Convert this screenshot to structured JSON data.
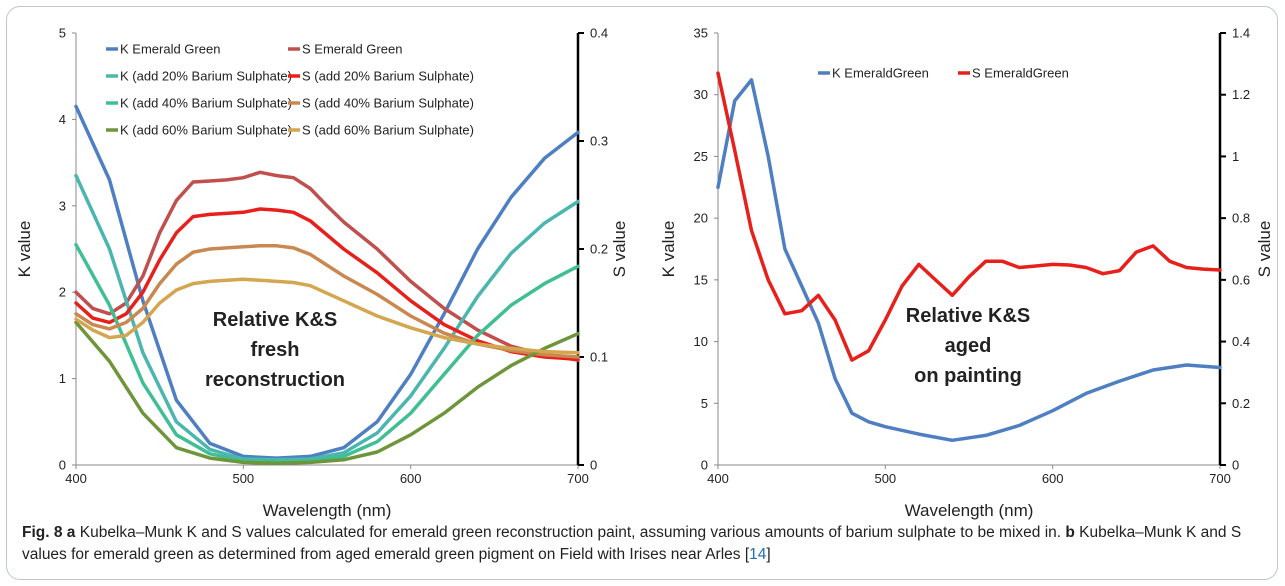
{
  "chart_data": [
    {
      "type": "line",
      "panel": "a",
      "xlabel": "Wavelength (nm)",
      "ylabel": "K value",
      "y2label": "S value",
      "xlim": [
        400,
        700
      ],
      "ylim": [
        0,
        5
      ],
      "y2lim": [
        0,
        0.4
      ],
      "xticks": [
        "400",
        "500",
        "600",
        "700"
      ],
      "yticks": [
        "0",
        "1",
        "2",
        "3",
        "4",
        "5"
      ],
      "y2ticks": [
        "0",
        "0.1",
        "0.2",
        "0.3",
        "0.4"
      ],
      "annotation": [
        "Relative K&S",
        "fresh",
        "reconstruction"
      ],
      "legend_position": "top",
      "series": [
        {
          "name": "K Emerald Green",
          "axis": "left",
          "color": "#4f7fc3",
          "x": [
            400,
            420,
            440,
            460,
            480,
            500,
            520,
            540,
            560,
            580,
            600,
            620,
            640,
            660,
            680,
            700
          ],
          "y": [
            4.15,
            3.3,
            1.9,
            0.75,
            0.25,
            0.1,
            0.08,
            0.1,
            0.2,
            0.5,
            1.05,
            1.75,
            2.5,
            3.1,
            3.55,
            3.85
          ]
        },
        {
          "name": "S Emerald Green",
          "axis": "right",
          "color": "#c0504d",
          "x": [
            400,
            410,
            420,
            430,
            440,
            450,
            460,
            470,
            480,
            490,
            500,
            510,
            520,
            530,
            540,
            550,
            560,
            580,
            600,
            620,
            640,
            660,
            680,
            700
          ],
          "y": [
            0.16,
            0.145,
            0.14,
            0.15,
            0.175,
            0.215,
            0.245,
            0.262,
            0.263,
            0.264,
            0.266,
            0.271,
            0.268,
            0.266,
            0.256,
            0.24,
            0.225,
            0.2,
            0.17,
            0.145,
            0.125,
            0.11,
            0.102,
            0.097
          ]
        },
        {
          "name": "K (add 20% Barium Sulphate)",
          "axis": "left",
          "color": "#4bb6b0",
          "x": [
            400,
            420,
            440,
            460,
            480,
            500,
            520,
            540,
            560,
            580,
            600,
            620,
            640,
            660,
            680,
            700
          ],
          "y": [
            3.35,
            2.5,
            1.3,
            0.5,
            0.18,
            0.07,
            0.06,
            0.07,
            0.14,
            0.37,
            0.8,
            1.35,
            1.95,
            2.45,
            2.8,
            3.05
          ]
        },
        {
          "name": "S (add 20% Barium Sulphate)",
          "axis": "right",
          "color": "#e8201b",
          "x": [
            400,
            410,
            420,
            430,
            440,
            450,
            460,
            470,
            480,
            490,
            500,
            510,
            520,
            530,
            540,
            560,
            580,
            600,
            620,
            640,
            660,
            680,
            700
          ],
          "y": [
            0.15,
            0.136,
            0.132,
            0.14,
            0.16,
            0.19,
            0.215,
            0.23,
            0.232,
            0.233,
            0.234,
            0.237,
            0.236,
            0.234,
            0.226,
            0.2,
            0.178,
            0.152,
            0.13,
            0.115,
            0.105,
            0.1,
            0.098
          ]
        },
        {
          "name": "K (add 40% Barium Sulphate)",
          "axis": "left",
          "color": "#3fbf93",
          "x": [
            400,
            420,
            440,
            460,
            480,
            500,
            520,
            540,
            560,
            580,
            600,
            620,
            640,
            660,
            680,
            700
          ],
          "y": [
            2.55,
            1.85,
            0.95,
            0.35,
            0.13,
            0.05,
            0.04,
            0.05,
            0.1,
            0.27,
            0.6,
            1.05,
            1.5,
            1.85,
            2.1,
            2.3
          ]
        },
        {
          "name": "S (add 40% Barium Sulphate)",
          "axis": "right",
          "color": "#c98850",
          "x": [
            400,
            410,
            420,
            430,
            440,
            450,
            460,
            470,
            480,
            490,
            500,
            510,
            520,
            530,
            540,
            560,
            580,
            600,
            620,
            640,
            660,
            680,
            700
          ],
          "y": [
            0.14,
            0.13,
            0.126,
            0.132,
            0.145,
            0.168,
            0.186,
            0.197,
            0.2,
            0.201,
            0.202,
            0.203,
            0.203,
            0.201,
            0.195,
            0.175,
            0.158,
            0.138,
            0.122,
            0.112,
            0.106,
            0.102,
            0.1
          ]
        },
        {
          "name": "K (add 60% Barium Sulphate)",
          "axis": "left",
          "color": "#6f953a",
          "x": [
            400,
            420,
            440,
            460,
            480,
            500,
            520,
            540,
            560,
            580,
            600,
            620,
            640,
            660,
            680,
            700
          ],
          "y": [
            1.65,
            1.2,
            0.6,
            0.2,
            0.08,
            0.03,
            0.02,
            0.03,
            0.06,
            0.15,
            0.35,
            0.6,
            0.9,
            1.15,
            1.35,
            1.52
          ]
        },
        {
          "name": "S (add 60% Barium Sulphate)",
          "axis": "right",
          "color": "#d4a650",
          "x": [
            400,
            410,
            420,
            430,
            440,
            450,
            460,
            470,
            480,
            490,
            500,
            510,
            520,
            530,
            540,
            560,
            580,
            600,
            620,
            640,
            660,
            680,
            700
          ],
          "y": [
            0.135,
            0.125,
            0.118,
            0.12,
            0.132,
            0.15,
            0.162,
            0.168,
            0.17,
            0.171,
            0.172,
            0.171,
            0.17,
            0.169,
            0.166,
            0.152,
            0.138,
            0.127,
            0.118,
            0.112,
            0.108,
            0.105,
            0.104
          ]
        }
      ]
    },
    {
      "type": "line",
      "panel": "b",
      "xlabel": "Wavelength (nm)",
      "ylabel": "K value",
      "y2label": "S value",
      "xlim": [
        400,
        700
      ],
      "ylim": [
        0,
        35
      ],
      "y2lim": [
        0,
        1.4
      ],
      "xticks": [
        "400",
        "500",
        "600",
        "700"
      ],
      "yticks": [
        "0",
        "5",
        "10",
        "15",
        "20",
        "25",
        "30",
        "35"
      ],
      "y2ticks": [
        "0",
        "0.2",
        "0.4",
        "0.6",
        "0.8",
        "1",
        "1.2",
        "1.4"
      ],
      "annotation": [
        "Relative K&S",
        "aged",
        "on painting"
      ],
      "legend_position": "top",
      "series": [
        {
          "name": "K EmeraldGreen",
          "axis": "left",
          "color": "#4f7fc3",
          "x": [
            400,
            410,
            420,
            430,
            440,
            450,
            460,
            470,
            480,
            490,
            500,
            520,
            540,
            560,
            580,
            600,
            620,
            640,
            660,
            680,
            700
          ],
          "y": [
            22.5,
            29.5,
            31.2,
            25,
            17.5,
            14.5,
            11.5,
            7,
            4.2,
            3.5,
            3.1,
            2.5,
            2,
            2.4,
            3.2,
            4.4,
            5.8,
            6.8,
            7.7,
            8.1,
            7.9
          ]
        },
        {
          "name": "S EmeraldGreen",
          "axis": "right",
          "color": "#e8201b",
          "x": [
            400,
            410,
            420,
            430,
            440,
            450,
            460,
            470,
            480,
            490,
            500,
            510,
            520,
            530,
            540,
            550,
            560,
            570,
            580,
            590,
            600,
            610,
            620,
            630,
            640,
            650,
            660,
            670,
            680,
            690,
            700
          ],
          "y": [
            1.27,
            1.02,
            0.76,
            0.6,
            0.49,
            0.5,
            0.55,
            0.47,
            0.34,
            0.37,
            0.47,
            0.58,
            0.65,
            0.6,
            0.55,
            0.61,
            0.66,
            0.66,
            0.64,
            0.645,
            0.65,
            0.648,
            0.64,
            0.62,
            0.63,
            0.69,
            0.71,
            0.66,
            0.64,
            0.635,
            0.632
          ]
        }
      ]
    }
  ],
  "caption": {
    "fig_label": "Fig. 8",
    "a_label": "a",
    "a_text": "Kubelka–Munk K and S values calculated for emerald green reconstruction paint, assuming various amounts of barium sulphate to be mixed in.",
    "b_label": "b",
    "b_text": "Kubelka–Munk K and S values for emerald green as determined from aged emerald green pigment on Field with Irises near Arles",
    "ref_open": "[",
    "ref": "14",
    "ref_close": "]"
  }
}
